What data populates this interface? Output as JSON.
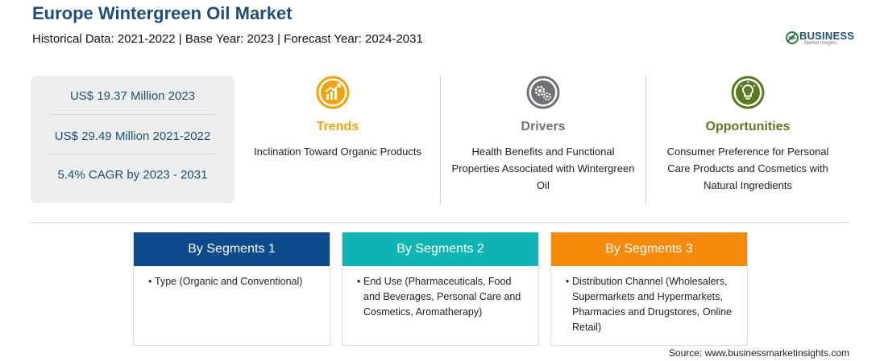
{
  "header": {
    "title": "Europe Wintergreen Oil Market",
    "subtitle": "Historical Data: 2021-2022 | Base Year: 2023 | Forecast Year: 2024-2031"
  },
  "logo": {
    "brand": "BUSINESS",
    "sub": "Market Insights"
  },
  "stats": [
    "US$ 19.37 Million 2023",
    "US$ 29.49 Million 2021-2022",
    "5.4% CAGR by 2023 - 2031"
  ],
  "columns": [
    {
      "title": "Trends",
      "text": "Inclination Toward Organic Products",
      "color": "#f0a30a",
      "icon": "chart-growth-icon"
    },
    {
      "title": "Drivers",
      "text": "Health Benefits and Functional Properties Associated with Wintergreen Oil",
      "color": "#6f7274",
      "icon": "gears-icon"
    },
    {
      "title": "Opportunities",
      "text": "Consumer Preference for Personal Care Products and Cosmetics with Natural Ingredients",
      "color": "#5b7a1f",
      "icon": "lightbulb-icon"
    }
  ],
  "segments": [
    {
      "title": "By Segments 1",
      "color": "#0d4a8c",
      "bullet": "•",
      "text": "Type (Organic and Conventional)"
    },
    {
      "title": "By Segments 2",
      "color": "#0fb5b5",
      "bullet": "•",
      "text": "End Use (Pharmaceuticals, Food and Beverages, Personal Care and Cosmetics, Aromatherapy)"
    },
    {
      "title": "By Segments 3",
      "color": "#f58a0b",
      "bullet": "•",
      "text": "Distribution Channel (Wholesalers, Supermarkets and Hypermarkets, Pharmacies and Drugstores, Online Retail)"
    }
  ],
  "source": "Source: www.businessmarketinsights.com"
}
